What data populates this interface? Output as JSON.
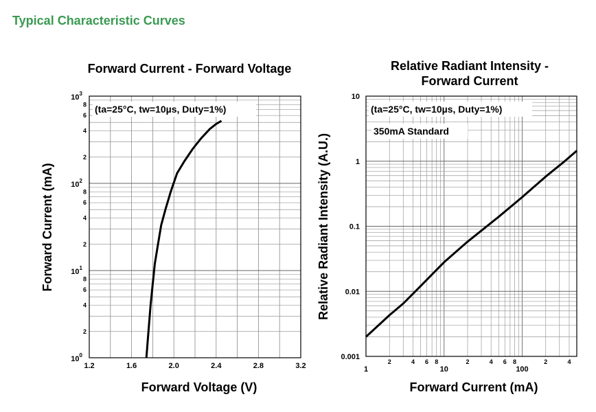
{
  "header": {
    "title": "Typical Characteristic Curves"
  },
  "chart_data": [
    {
      "type": "line",
      "title": "Forward Current - Forward Voltage",
      "xlabel": "Forward Voltage (V)",
      "ylabel": "Forward Current (mA)",
      "xscale": "linear",
      "yscale": "log",
      "xlim": [
        1.2,
        3.2
      ],
      "ylim": [
        1,
        1000
      ],
      "grid": true,
      "xticks": [
        "1.2",
        "1.6",
        "2.0",
        "2.4",
        "2.8",
        "3.2"
      ],
      "yticks": [
        {
          "base": "10",
          "exp": "0"
        },
        {
          "base": "10",
          "exp": "1"
        },
        {
          "base": "10",
          "exp": "2"
        },
        {
          "base": "10",
          "exp": "3"
        }
      ],
      "yminor_labels": [
        "2",
        "4",
        "6",
        "8"
      ],
      "annotations": [
        "(ta=25°C, tw=10µs, Duty=1%)"
      ],
      "series": [
        {
          "x": [
            1.74,
            1.76,
            1.78,
            1.8,
            1.82,
            1.85,
            1.88,
            1.92,
            1.97,
            2.03,
            2.1,
            2.18,
            2.26,
            2.34,
            2.4,
            2.45
          ],
          "y": [
            1.0,
            2.0,
            4.0,
            7.0,
            12,
            20,
            33,
            50,
            80,
            130,
            180,
            250,
            330,
            420,
            480,
            520
          ]
        }
      ]
    },
    {
      "type": "line",
      "title": "Relative Radiant Intensity - Forward Current",
      "title_lines": [
        "Relative Radiant Intensity -",
        "Forward Current"
      ],
      "xlabel": "Forward Current (mA)",
      "ylabel": "Relative Radiant Intensity (A.U.)",
      "xscale": "log",
      "yscale": "log",
      "xlim": [
        1,
        500
      ],
      "ylim": [
        0.001,
        10
      ],
      "grid": true,
      "xticks": [
        "1",
        "10",
        "100"
      ],
      "xminor_labels": [
        "2",
        "4",
        "6",
        "8"
      ],
      "yticks": [
        "0.001",
        "0.01",
        "0.1",
        "1",
        "10"
      ],
      "annotations": [
        "(ta=25°C, tw=10µs, Duty=1%)",
        "350mA Standard"
      ],
      "series": [
        {
          "x": [
            1,
            2,
            3,
            5,
            10,
            20,
            50,
            100,
            200,
            350,
            500
          ],
          "y": [
            0.002,
            0.0043,
            0.0065,
            0.012,
            0.028,
            0.058,
            0.14,
            0.28,
            0.58,
            1.0,
            1.45
          ]
        }
      ]
    }
  ]
}
